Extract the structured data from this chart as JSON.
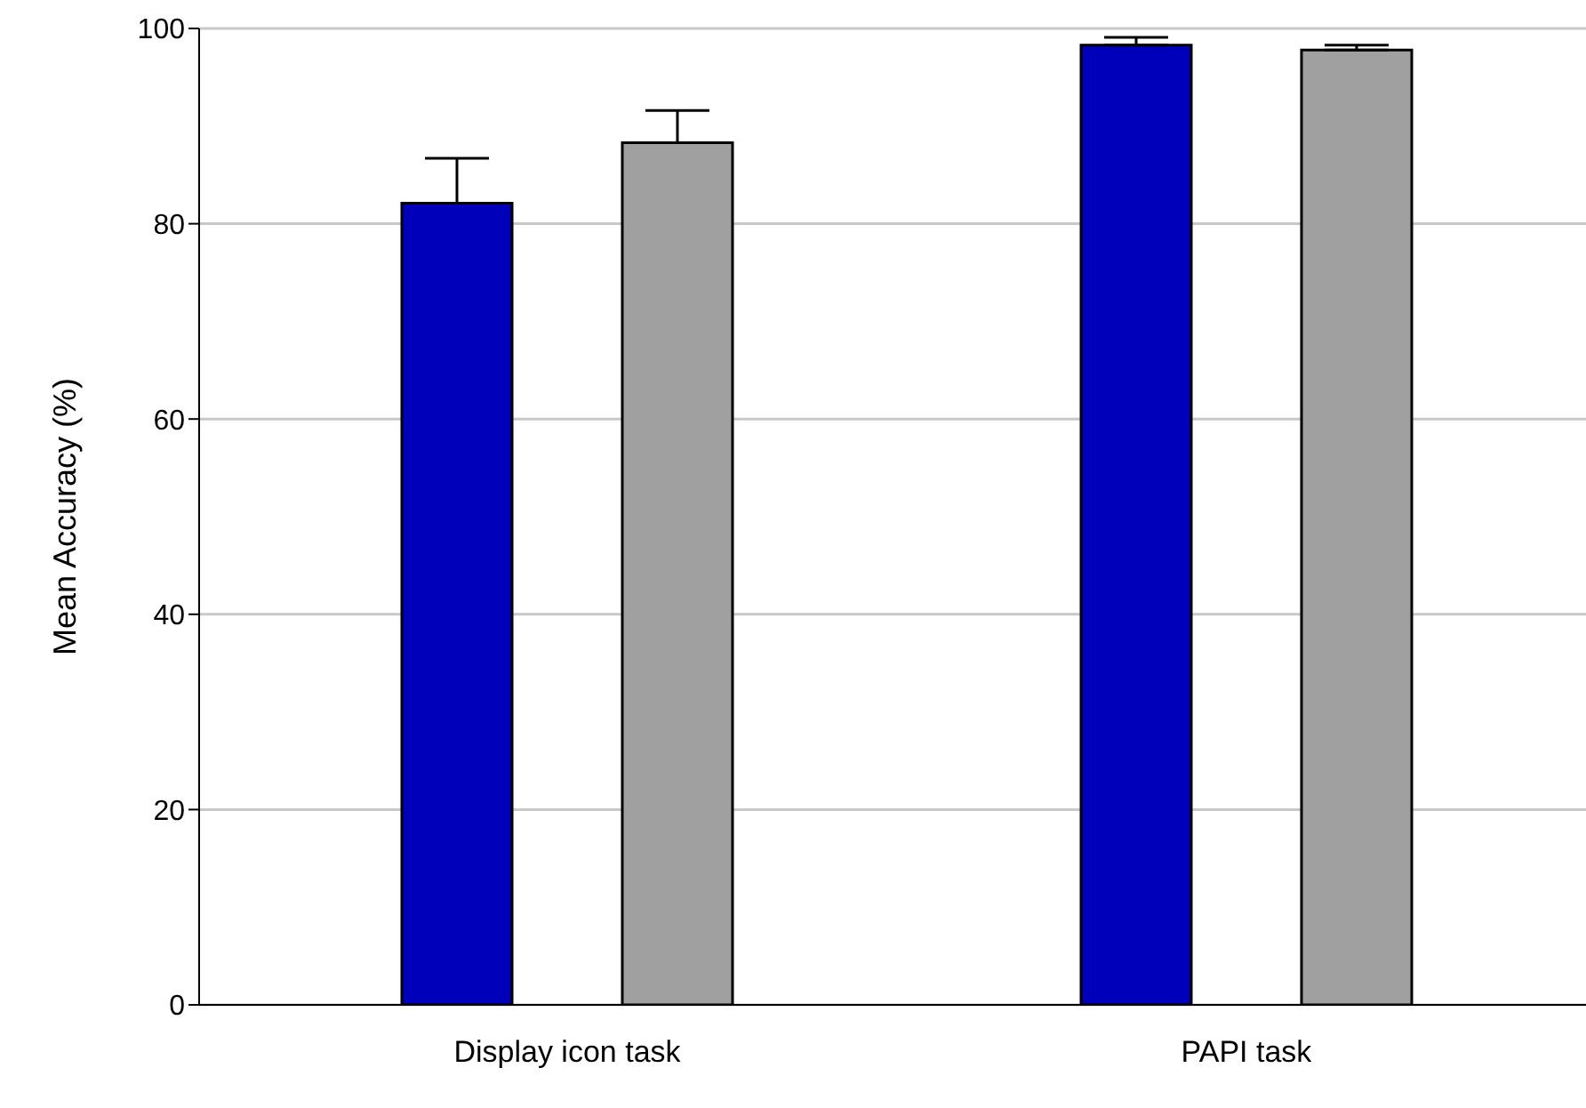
{
  "chart_data": {
    "type": "bar",
    "ylabel": "Mean Accuracy (%)",
    "categories": [
      "Display icon task",
      "PAPI task"
    ],
    "series": [
      {
        "color": "#0000bb",
        "values": [
          82.1,
          98.3
        ],
        "errors": [
          [
            82.1,
            86.7
          ],
          [
            98.3,
            99.1
          ]
        ]
      },
      {
        "color": "#a0a0a0",
        "values": [
          88.3,
          97.8
        ],
        "errors": [
          [
            88.3,
            91.6
          ],
          [
            97.8,
            98.3
          ]
        ]
      }
    ],
    "ylim": [
      0,
      100
    ],
    "yticks": [
      0,
      20,
      40,
      60,
      80,
      100
    ],
    "grid": "y",
    "legend": false
  }
}
